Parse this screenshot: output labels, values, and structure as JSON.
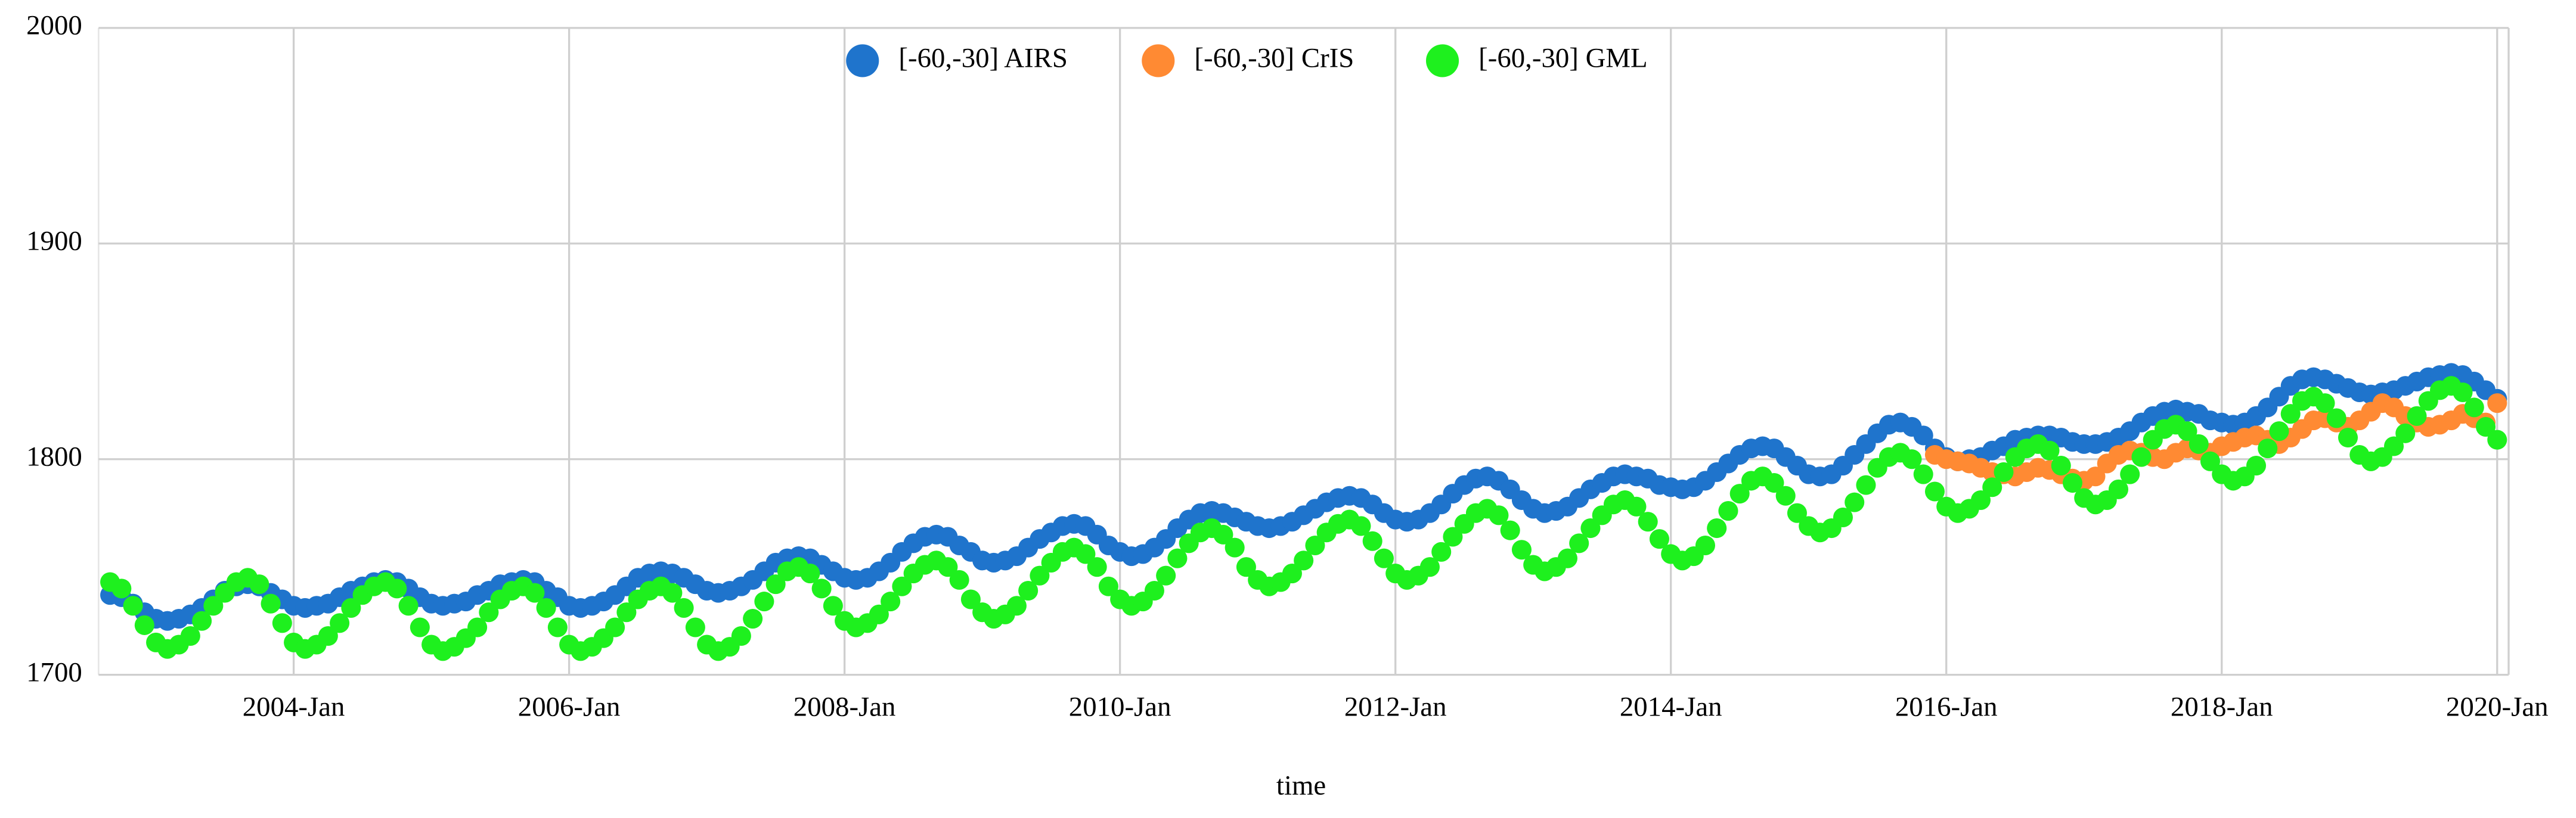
{
  "chart_data": {
    "type": "scatter",
    "x_label": "time",
    "legend": "top",
    "grid": true,
    "xlim": [
      "2002-08",
      "2020-02"
    ],
    "xticks": [
      {
        "value": "2004-01",
        "label": "2004-Jan"
      },
      {
        "value": "2006-01",
        "label": "2006-Jan"
      },
      {
        "value": "2008-01",
        "label": "2008-Jan"
      },
      {
        "value": "2010-01",
        "label": "2010-Jan"
      },
      {
        "value": "2012-01",
        "label": "2012-Jan"
      },
      {
        "value": "2014-01",
        "label": "2014-Jan"
      },
      {
        "value": "2016-01",
        "label": "2016-Jan"
      },
      {
        "value": "2018-01",
        "label": "2018-Jan"
      },
      {
        "value": "2020-01",
        "label": "2020-Jan"
      }
    ],
    "ylim": [
      1700,
      2000
    ],
    "yticks": [
      1700,
      1800,
      1900,
      2000
    ],
    "x": [
      "2002-09",
      "2002-10",
      "2002-11",
      "2002-12",
      "2003-01",
      "2003-02",
      "2003-03",
      "2003-04",
      "2003-05",
      "2003-06",
      "2003-07",
      "2003-08",
      "2003-09",
      "2003-10",
      "2003-11",
      "2003-12",
      "2004-01",
      "2004-02",
      "2004-03",
      "2004-04",
      "2004-05",
      "2004-06",
      "2004-07",
      "2004-08",
      "2004-09",
      "2004-10",
      "2004-11",
      "2004-12",
      "2005-01",
      "2005-02",
      "2005-03",
      "2005-04",
      "2005-05",
      "2005-06",
      "2005-07",
      "2005-08",
      "2005-09",
      "2005-10",
      "2005-11",
      "2005-12",
      "2006-01",
      "2006-02",
      "2006-03",
      "2006-04",
      "2006-05",
      "2006-06",
      "2006-07",
      "2006-08",
      "2006-09",
      "2006-10",
      "2006-11",
      "2006-12",
      "2007-01",
      "2007-02",
      "2007-03",
      "2007-04",
      "2007-05",
      "2007-06",
      "2007-07",
      "2007-08",
      "2007-09",
      "2007-10",
      "2007-11",
      "2007-12",
      "2008-01",
      "2008-02",
      "2008-03",
      "2008-04",
      "2008-05",
      "2008-06",
      "2008-07",
      "2008-08",
      "2008-09",
      "2008-10",
      "2008-11",
      "2008-12",
      "2009-01",
      "2009-02",
      "2009-03",
      "2009-04",
      "2009-05",
      "2009-06",
      "2009-07",
      "2009-08",
      "2009-09",
      "2009-10",
      "2009-11",
      "2009-12",
      "2010-01",
      "2010-02",
      "2010-03",
      "2010-04",
      "2010-05",
      "2010-06",
      "2010-07",
      "2010-08",
      "2010-09",
      "2010-10",
      "2010-11",
      "2010-12",
      "2011-01",
      "2011-02",
      "2011-03",
      "2011-04",
      "2011-05",
      "2011-06",
      "2011-07",
      "2011-08",
      "2011-09",
      "2011-10",
      "2011-11",
      "2011-12",
      "2012-01",
      "2012-02",
      "2012-03",
      "2012-04",
      "2012-05",
      "2012-06",
      "2012-07",
      "2012-08",
      "2012-09",
      "2012-10",
      "2012-11",
      "2012-12",
      "2013-01",
      "2013-02",
      "2013-03",
      "2013-04",
      "2013-05",
      "2013-06",
      "2013-07",
      "2013-08",
      "2013-09",
      "2013-10",
      "2013-11",
      "2013-12",
      "2014-01",
      "2014-02",
      "2014-03",
      "2014-04",
      "2014-05",
      "2014-06",
      "2014-07",
      "2014-08",
      "2014-09",
      "2014-10",
      "2014-11",
      "2014-12",
      "2015-01",
      "2015-02",
      "2015-03",
      "2015-04",
      "2015-05",
      "2015-06",
      "2015-07",
      "2015-08",
      "2015-09",
      "2015-10",
      "2015-11",
      "2015-12",
      "2016-01",
      "2016-02",
      "2016-03",
      "2016-04",
      "2016-05",
      "2016-06",
      "2016-07",
      "2016-08",
      "2016-09",
      "2016-10",
      "2016-11",
      "2016-12",
      "2017-01",
      "2017-02",
      "2017-03",
      "2017-04",
      "2017-05",
      "2017-06",
      "2017-07",
      "2017-08",
      "2017-09",
      "2017-10",
      "2017-11",
      "2017-12",
      "2018-01",
      "2018-02",
      "2018-03",
      "2018-04",
      "2018-05",
      "2018-06",
      "2018-07",
      "2018-08",
      "2018-09",
      "2018-10",
      "2018-11",
      "2018-12",
      "2019-01",
      "2019-02",
      "2019-03",
      "2019-04",
      "2019-05",
      "2019-06",
      "2019-07",
      "2019-08",
      "2019-09",
      "2019-10",
      "2019-11",
      "2019-12",
      "2020-01"
    ],
    "series": [
      {
        "name": "[-60,-30] AIRS",
        "color": "#1f74cc",
        "values": [
          1737,
          1736,
          1733,
          1729,
          1726,
          1725,
          1726,
          1728,
          1731,
          1735,
          1739,
          1741,
          1742,
          1741,
          1738,
          1735,
          1732,
          1731,
          1732,
          1733,
          1736,
          1739,
          1741,
          1743,
          1744,
          1743,
          1740,
          1736,
          1733,
          1732,
          1733,
          1734,
          1737,
          1739,
          1742,
          1743,
          1744,
          1743,
          1739,
          1736,
          1732,
          1731,
          1732,
          1734,
          1737,
          1741,
          1745,
          1747,
          1748,
          1747,
          1745,
          1742,
          1739,
          1738,
          1739,
          1741,
          1744,
          1748,
          1752,
          1754,
          1755,
          1754,
          1751,
          1748,
          1745,
          1744,
          1745,
          1748,
          1752,
          1757,
          1761,
          1764,
          1765,
          1764,
          1760,
          1757,
          1753,
          1752,
          1753,
          1755,
          1759,
          1763,
          1766,
          1769,
          1770,
          1769,
          1765,
          1760,
          1757,
          1755,
          1756,
          1759,
          1763,
          1768,
          1772,
          1775,
          1776,
          1775,
          1773,
          1771,
          1769,
          1768,
          1769,
          1771,
          1774,
          1777,
          1780,
          1782,
          1783,
          1782,
          1779,
          1775,
          1772,
          1771,
          1772,
          1775,
          1779,
          1784,
          1788,
          1791,
          1792,
          1790,
          1786,
          1781,
          1777,
          1775,
          1776,
          1778,
          1782,
          1786,
          1789,
          1792,
          1793,
          1792,
          1791,
          1788,
          1787,
          1786,
          1787,
          1790,
          1794,
          1798,
          1802,
          1805,
          1806,
          1805,
          1801,
          1797,
          1793,
          1792,
          1793,
          1797,
          1802,
          1807,
          1812,
          1816,
          1817,
          1815,
          1811,
          1805,
          1801,
          1799,
          1800,
          1801,
          1804,
          1806,
          1809,
          1810,
          1811,
          1811,
          1810,
          1808,
          1807,
          1807,
          1808,
          1810,
          1813,
          1817,
          1820,
          1822,
          1823,
          1822,
          1821,
          1818,
          1817,
          1816,
          1817,
          1820,
          1824,
          1829,
          1834,
          1837,
          1838,
          1837,
          1835,
          1833,
          1831,
          1830,
          1831,
          1832,
          1834,
          1836,
          1838,
          1839,
          1840,
          1839,
          1836,
          1832,
          1828
        ]
      },
      {
        "name": "[-60,-30] CrIS",
        "color": "#ff8a33",
        "values": [
          null,
          null,
          null,
          null,
          null,
          null,
          null,
          null,
          null,
          null,
          null,
          null,
          null,
          null,
          null,
          null,
          null,
          null,
          null,
          null,
          null,
          null,
          null,
          null,
          null,
          null,
          null,
          null,
          null,
          null,
          null,
          null,
          null,
          null,
          null,
          null,
          null,
          null,
          null,
          null,
          null,
          null,
          null,
          null,
          null,
          null,
          null,
          null,
          null,
          null,
          null,
          null,
          null,
          null,
          null,
          null,
          null,
          null,
          null,
          null,
          null,
          null,
          null,
          null,
          null,
          null,
          null,
          null,
          null,
          null,
          null,
          null,
          null,
          null,
          null,
          null,
          null,
          null,
          null,
          null,
          null,
          null,
          null,
          null,
          null,
          null,
          null,
          null,
          null,
          null,
          null,
          null,
          null,
          null,
          null,
          null,
          null,
          null,
          null,
          null,
          null,
          null,
          null,
          null,
          null,
          null,
          null,
          null,
          null,
          null,
          null,
          null,
          null,
          null,
          null,
          null,
          null,
          null,
          null,
          null,
          null,
          null,
          null,
          null,
          null,
          null,
          null,
          null,
          null,
          null,
          null,
          null,
          null,
          null,
          null,
          null,
          null,
          null,
          null,
          null,
          null,
          null,
          null,
          null,
          null,
          null,
          null,
          null,
          null,
          null,
          null,
          null,
          null,
          null,
          null,
          null,
          null,
          null,
          null,
          1802,
          1800,
          1799,
          1798,
          1796,
          1794,
          1793,
          1792,
          1794,
          1796,
          1795,
          1793,
          1791,
          1790,
          1792,
          1798,
          1802,
          1804,
          1803,
          1801,
          1800,
          1803,
          1805,
          1804,
          1803,
          1806,
          1808,
          1810,
          1811,
          1809,
          1807,
          1810,
          1814,
          1818,
          1819,
          1817,
          1815,
          1818,
          1822,
          1826,
          1824,
          1820,
          1817,
          1815,
          1816,
          1818,
          1821,
          1819,
          1817,
          1826
        ]
      },
      {
        "name": "[-60,-30] GML",
        "color": "#1ef01e",
        "values": [
          1743,
          1740,
          1732,
          1723,
          1715,
          1712,
          1714,
          1718,
          1725,
          1732,
          1738,
          1743,
          1745,
          1742,
          1733,
          1724,
          1715,
          1712,
          1714,
          1718,
          1724,
          1731,
          1737,
          1741,
          1743,
          1740,
          1732,
          1722,
          1714,
          1711,
          1713,
          1717,
          1722,
          1729,
          1735,
          1739,
          1741,
          1738,
          1731,
          1722,
          1714,
          1711,
          1713,
          1717,
          1722,
          1729,
          1735,
          1739,
          1741,
          1738,
          1731,
          1722,
          1714,
          1711,
          1713,
          1718,
          1726,
          1734,
          1742,
          1748,
          1750,
          1747,
          1740,
          1732,
          1725,
          1722,
          1724,
          1728,
          1734,
          1741,
          1747,
          1751,
          1753,
          1750,
          1744,
          1735,
          1729,
          1726,
          1728,
          1732,
          1739,
          1746,
          1752,
          1757,
          1759,
          1756,
          1750,
          1741,
          1735,
          1732,
          1734,
          1739,
          1746,
          1754,
          1761,
          1766,
          1768,
          1765,
          1759,
          1750,
          1744,
          1741,
          1743,
          1747,
          1753,
          1760,
          1766,
          1770,
          1772,
          1769,
          1762,
          1754,
          1747,
          1744,
          1746,
          1750,
          1757,
          1764,
          1770,
          1775,
          1777,
          1774,
          1767,
          1758,
          1751,
          1748,
          1750,
          1754,
          1761,
          1768,
          1774,
          1779,
          1781,
          1778,
          1771,
          1763,
          1756,
          1753,
          1755,
          1760,
          1768,
          1776,
          1784,
          1790,
          1792,
          1789,
          1783,
          1775,
          1769,
          1766,
          1768,
          1773,
          1780,
          1788,
          1796,
          1801,
          1803,
          1800,
          1793,
          1785,
          1778,
          1775,
          1777,
          1781,
          1787,
          1794,
          1801,
          1805,
          1807,
          1804,
          1797,
          1789,
          1782,
          1779,
          1781,
          1786,
          1793,
          1801,
          1809,
          1814,
          1816,
          1813,
          1807,
          1799,
          1793,
          1790,
          1792,
          1797,
          1805,
          1813,
          1821,
          1827,
          1829,
          1826,
          1819,
          1810,
          1802,
          1799,
          1801,
          1806,
          1812,
          1820,
          1827,
          1832,
          1834,
          1831,
          1824,
          1815,
          1809
        ]
      }
    ]
  }
}
